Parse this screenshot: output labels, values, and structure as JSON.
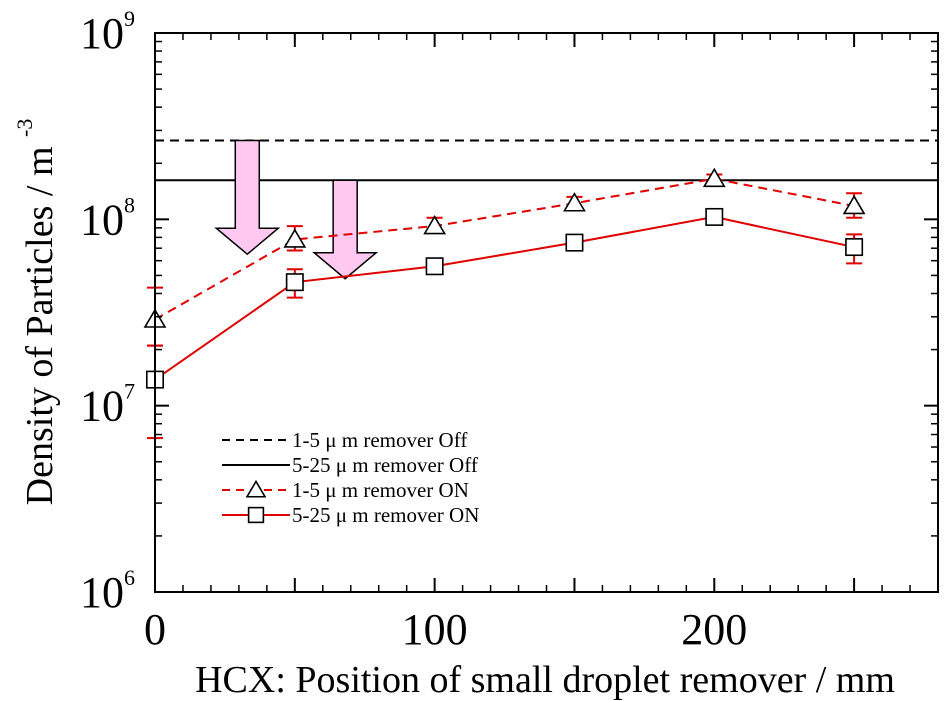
{
  "chart_data": {
    "type": "line",
    "title": "",
    "xlabel": "HCX: Position of small droplet remover / mm",
    "ylabel": {
      "base": "Density of Particles / m",
      "superscript": "-3"
    },
    "xlim": [
      0,
      280
    ],
    "ylim": [
      1000000,
      1000000000
    ],
    "yscale": "log",
    "x_ticks": [
      "0",
      "100",
      "200"
    ],
    "x_tick_values": [
      0,
      100,
      200
    ],
    "y_ticks": [
      {
        "base": "10",
        "exp": "6",
        "value": 1000000
      },
      {
        "base": "10",
        "exp": "7",
        "value": 10000000
      },
      {
        "base": "10",
        "exp": "8",
        "value": 100000000
      },
      {
        "base": "10",
        "exp": "9",
        "value": 1000000000
      }
    ],
    "legend_position": "lower-left",
    "reference_lines": [
      {
        "name": "1-5  μ m remover Off",
        "y": 265000000,
        "style": "dashed",
        "color": "#000000"
      },
      {
        "name": "5-25 μ m remover Off",
        "y": 162000000,
        "style": "solid",
        "color": "#000000"
      }
    ],
    "series": [
      {
        "name": "1-5  μ m remover ON",
        "marker": "triangle",
        "style": "dashed",
        "color": "#e00000",
        "x": [
          0,
          50,
          100,
          150,
          200,
          250
        ],
        "y": [
          29000000,
          78000000,
          92000000,
          122000000,
          165000000,
          118000000
        ],
        "err_low": [
          21000000,
          68000000,
          85000000,
          115000000,
          158000000,
          102000000
        ],
        "err_high": [
          43000000,
          92000000,
          102000000,
          132000000,
          174000000,
          138000000
        ]
      },
      {
        "name": "5-25 μ m remover ON",
        "marker": "square",
        "style": "solid",
        "color": "#e00000",
        "x": [
          0,
          50,
          100,
          150,
          200,
          250
        ],
        "y": [
          13800000,
          46000000,
          56000000,
          75000000,
          103000000,
          71000000
        ],
        "err_low": [
          6700000,
          38000000,
          52000000,
          71000000,
          98000000,
          58000000
        ],
        "err_high": [
          21000000,
          54000000,
          60000000,
          79000000,
          108000000,
          83000000
        ]
      }
    ],
    "annotations": [
      {
        "type": "arrow",
        "direction": "down",
        "x": 33,
        "y_from": 265000000,
        "y_to": 65000000,
        "color": "#ffc8f0"
      },
      {
        "type": "arrow",
        "direction": "down",
        "x": 68,
        "y_from": 162000000,
        "y_to": 48000000,
        "color": "#ffc8f0"
      }
    ]
  }
}
